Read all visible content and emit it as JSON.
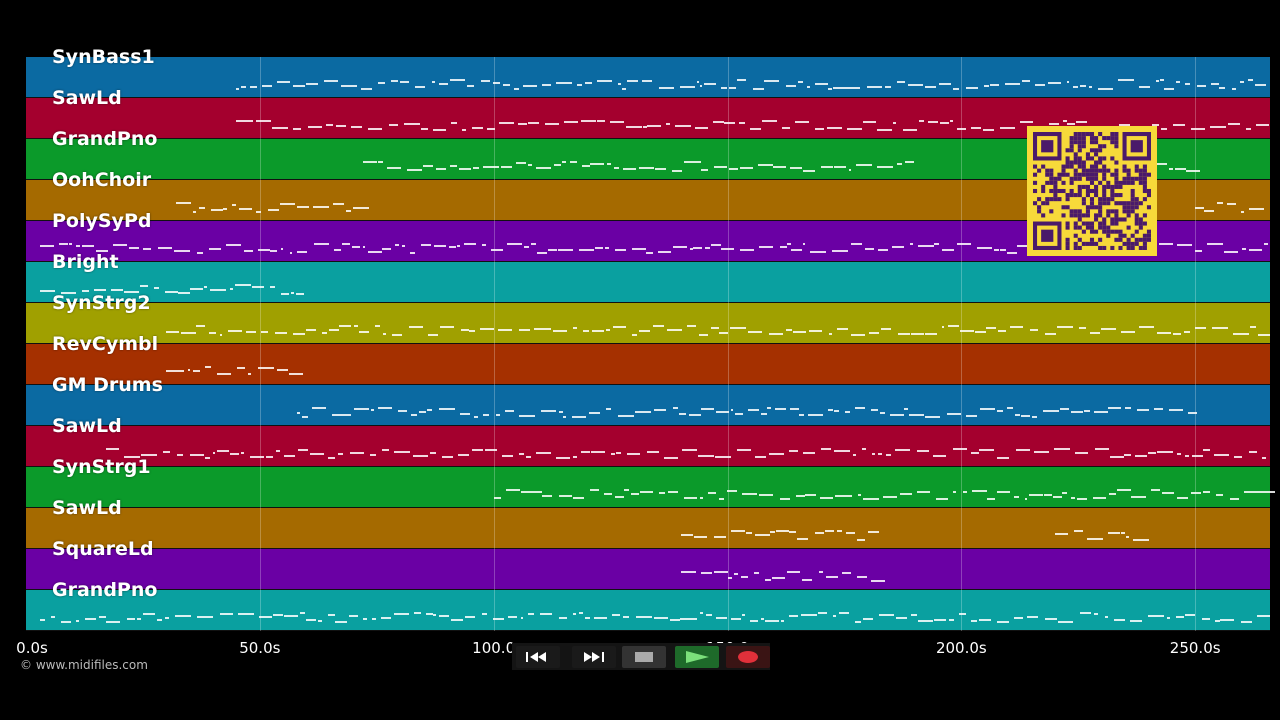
{
  "tracks": [
    {
      "name": "SynBass1",
      "color": "#0b6aa2"
    },
    {
      "name": "SawLd",
      "color": "#a4002e"
    },
    {
      "name": "GrandPno",
      "color": "#0b9a2a"
    },
    {
      "name": "OohChoir",
      "color": "#a56a00"
    },
    {
      "name": "PolySyPd",
      "color": "#6a00a4"
    },
    {
      "name": "Bright",
      "color": "#0aa0a0"
    },
    {
      "name": "SynStrg2",
      "color": "#a0a000"
    },
    {
      "name": "RevCymbl",
      "color": "#a53000"
    },
    {
      "name": "GM Drums",
      "color": "#0b6aa2"
    },
    {
      "name": "SawLd",
      "color": "#a4002e"
    },
    {
      "name": "SynStrg1",
      "color": "#0b9a2a"
    },
    {
      "name": "SawLd",
      "color": "#a56a00"
    },
    {
      "name": "SquareLd",
      "color": "#6a00a4"
    },
    {
      "name": "GrandPno",
      "color": "#0aa0a0"
    }
  ],
  "timeline": {
    "ticks": [
      "0.0s",
      "50.0s",
      "100.0",
      "150.0",
      "200.0s",
      "250.0s"
    ],
    "tick_seconds": [
      0,
      50,
      100,
      150,
      200,
      250
    ],
    "max_seconds": 266
  },
  "copyright": "© www.midifiles.com",
  "transport": {
    "buttons": [
      {
        "id": "rewind",
        "icon": "rewind-icon"
      },
      {
        "id": "fast-forward",
        "icon": "fast-forward-icon"
      },
      {
        "id": "stop",
        "icon": "stop-icon"
      },
      {
        "id": "play",
        "icon": "play-icon"
      },
      {
        "id": "record",
        "icon": "record-icon"
      }
    ]
  },
  "qr_code": {
    "icon": "qr-code-icon",
    "color": "#f7d93a"
  }
}
